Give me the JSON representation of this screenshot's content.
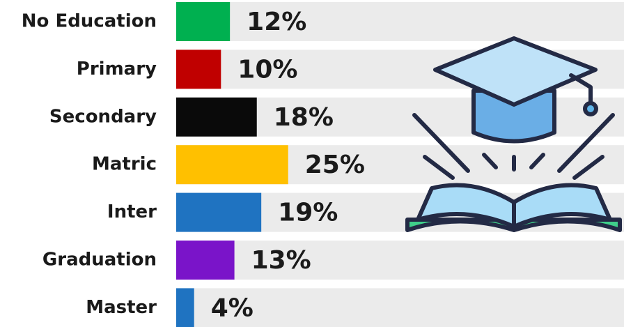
{
  "chart_data": {
    "type": "bar",
    "orientation": "horizontal",
    "categories": [
      "No Education",
      "Primary",
      "Secondary",
      "Matric",
      "Inter",
      "Graduation",
      "Master"
    ],
    "values": [
      12,
      10,
      18,
      25,
      19,
      13,
      4
    ],
    "value_labels": [
      "12%",
      "10%",
      "18%",
      "25%",
      "19%",
      "13%",
      "4%"
    ],
    "colors": [
      "#00b050",
      "#c00000",
      "#0a0a0a",
      "#ffc000",
      "#1f73c1",
      "#7a14c9",
      "#1f73c1"
    ],
    "xlim": [
      0,
      100
    ]
  }
}
